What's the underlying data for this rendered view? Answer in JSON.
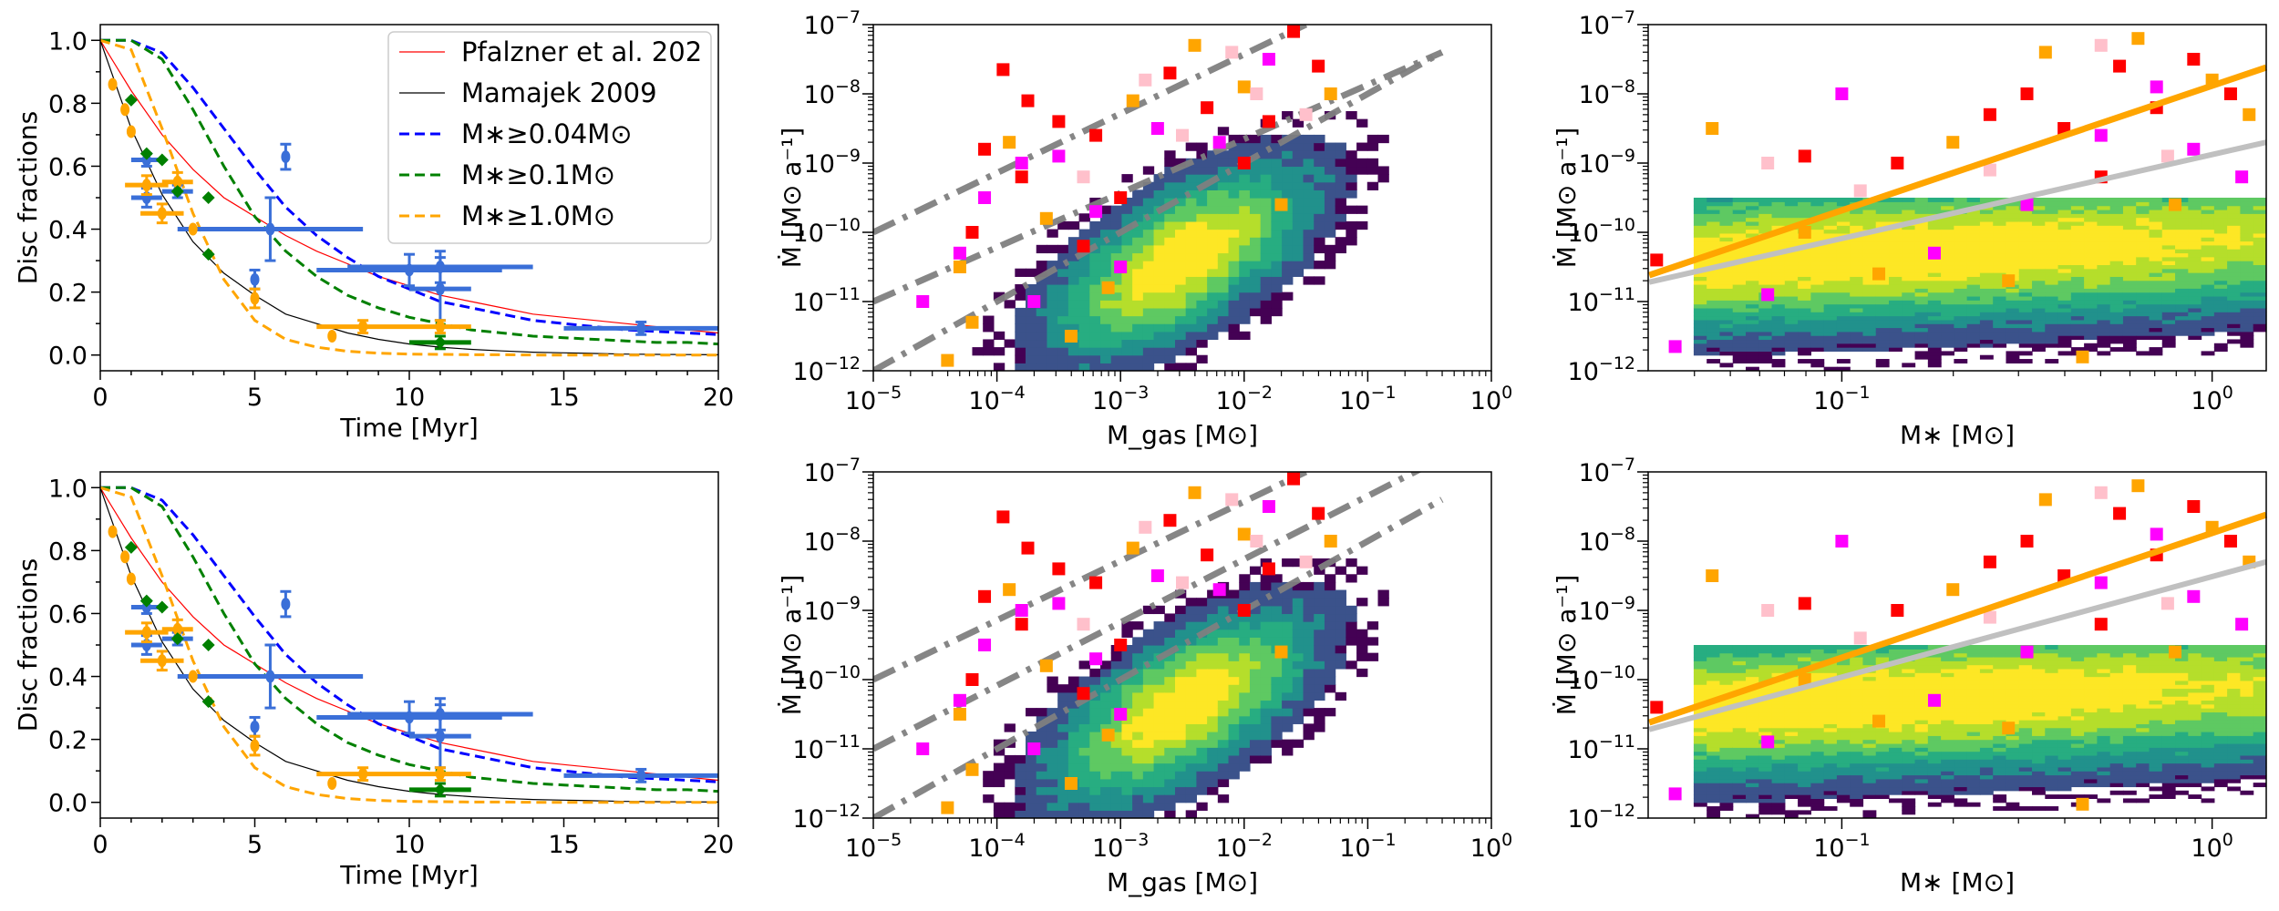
{
  "chart_data": [
    {
      "type": "line",
      "title": "",
      "xlabel": "Time [Myr]",
      "ylabel": "Disc fractions",
      "xlim": [
        0,
        20
      ],
      "ylim": [
        -0.05,
        1.05
      ],
      "xticks": [
        "0",
        "5",
        "10",
        "15",
        "20"
      ],
      "yticks": [
        "0.0",
        "0.2",
        "0.4",
        "0.6",
        "0.8",
        "1.0"
      ],
      "legend_position": "top-right",
      "legend": [
        "Pfalzner et al. 202",
        "Mamajek 2009",
        "M∗≥0.04M⊙",
        "M∗≥0.1M⊙",
        "M∗≥1.0M⊙"
      ],
      "colors": {
        "pfalzner": "#ff0000",
        "mamajek": "#000000",
        "m004": "#0000ff",
        "m01": "#008000",
        "m10": "#ffa500",
        "obs_blue": "#3a6fd8",
        "obs_orange": "#ffa500",
        "obs_green": "#008000"
      },
      "series": [
        {
          "name": "Pfalzner et al. 202",
          "x": [
            0,
            1,
            2,
            3,
            4,
            5,
            6,
            7,
            8,
            9,
            10,
            11,
            12,
            13,
            14,
            15,
            16,
            17,
            18,
            19,
            20
          ],
          "y": [
            1.0,
            0.84,
            0.7,
            0.59,
            0.5,
            0.44,
            0.38,
            0.33,
            0.29,
            0.25,
            0.22,
            0.19,
            0.17,
            0.15,
            0.13,
            0.12,
            0.11,
            0.1,
            0.09,
            0.08,
            0.07
          ]
        },
        {
          "name": "Mamajek 2009",
          "x": [
            0,
            1,
            2,
            3,
            4,
            5,
            6,
            7,
            8,
            9,
            10,
            11,
            12,
            13,
            14,
            15,
            16,
            17,
            18,
            19,
            20
          ],
          "y": [
            1.0,
            0.72,
            0.51,
            0.36,
            0.26,
            0.19,
            0.13,
            0.1,
            0.07,
            0.05,
            0.035,
            0.025,
            0.018,
            0.013,
            0.009,
            0.007,
            0.005,
            0.003,
            0.002,
            0.0015,
            0.001
          ]
        },
        {
          "name": "M∗≥0.04M⊙",
          "x": [
            0,
            1,
            2,
            3,
            4,
            5,
            6,
            7,
            8,
            9,
            10,
            11,
            12,
            13,
            14,
            15,
            16,
            17,
            18,
            19,
            20
          ],
          "y": [
            1.0,
            1.0,
            0.96,
            0.85,
            0.72,
            0.59,
            0.47,
            0.38,
            0.31,
            0.25,
            0.21,
            0.17,
            0.15,
            0.13,
            0.11,
            0.1,
            0.09,
            0.08,
            0.075,
            0.07,
            0.065
          ]
        },
        {
          "name": "M∗≥0.1M⊙",
          "x": [
            0,
            1,
            2,
            3,
            4,
            5,
            6,
            7,
            8,
            9,
            10,
            11,
            12,
            13,
            14,
            15,
            16,
            17,
            18,
            19,
            20
          ],
          "y": [
            1.0,
            1.0,
            0.94,
            0.78,
            0.6,
            0.44,
            0.33,
            0.25,
            0.19,
            0.15,
            0.12,
            0.1,
            0.08,
            0.07,
            0.06,
            0.055,
            0.05,
            0.045,
            0.04,
            0.04,
            0.035
          ]
        },
        {
          "name": "M∗≥1.0M⊙",
          "x": [
            0,
            1,
            2,
            3,
            4,
            5,
            6,
            7,
            8,
            9,
            10,
            11,
            12,
            13,
            14,
            15,
            16,
            17,
            18,
            19,
            20
          ],
          "y": [
            1.0,
            0.97,
            0.72,
            0.45,
            0.24,
            0.11,
            0.05,
            0.025,
            0.012,
            0.006,
            0.003,
            0.002,
            0.001,
            0.001,
            0.0,
            0.0,
            0.0,
            0.0,
            0.0,
            0.0,
            0.0
          ]
        }
      ],
      "observations": [
        {
          "color": "blue",
          "x": 1.5,
          "y": 0.62,
          "xerr": 0.5,
          "yerr": 0.02
        },
        {
          "color": "blue",
          "x": 1.5,
          "y": 0.5,
          "xerr": 0.5,
          "yerr": 0.03
        },
        {
          "color": "blue",
          "x": 2.5,
          "y": 0.52,
          "xerr": 0.5,
          "yerr": 0.02
        },
        {
          "color": "blue",
          "x": 5.0,
          "y": 0.24,
          "xerr": 0.0,
          "yerr": 0.03
        },
        {
          "color": "blue",
          "x": 5.5,
          "y": 0.4,
          "xerr": 3.0,
          "yerr": 0.1
        },
        {
          "color": "blue",
          "x": 6.0,
          "y": 0.63,
          "xerr": 0.0,
          "yerr": 0.04
        },
        {
          "color": "blue",
          "x": 10.0,
          "y": 0.27,
          "xerr": 3.0,
          "yerr": 0.05
        },
        {
          "color": "blue",
          "x": 11.0,
          "y": 0.28,
          "xerr": 3.0,
          "yerr": 0.05
        },
        {
          "color": "blue",
          "x": 11.0,
          "y": 0.21,
          "xerr": 1.0,
          "yerr": 0.1
        },
        {
          "color": "blue",
          "x": 17.5,
          "y": 0.085,
          "xerr": 2.5,
          "yerr": 0.02
        },
        {
          "color": "orange",
          "x": 0.4,
          "y": 0.86,
          "xerr": 0.0,
          "yerr": 0.0
        },
        {
          "color": "orange",
          "x": 0.8,
          "y": 0.78,
          "xerr": 0.0,
          "yerr": 0.0
        },
        {
          "color": "orange",
          "x": 1.0,
          "y": 0.71,
          "xerr": 0.0,
          "yerr": 0.0
        },
        {
          "color": "orange",
          "x": 1.5,
          "y": 0.54,
          "xerr": 0.7,
          "yerr": 0.03
        },
        {
          "color": "orange",
          "x": 2.0,
          "y": 0.45,
          "xerr": 0.7,
          "yerr": 0.03
        },
        {
          "color": "orange",
          "x": 2.5,
          "y": 0.55,
          "xerr": 0.5,
          "yerr": 0.03
        },
        {
          "color": "orange",
          "x": 3.0,
          "y": 0.4,
          "xerr": 0.0,
          "yerr": 0.0
        },
        {
          "color": "orange",
          "x": 5.0,
          "y": 0.18,
          "xerr": 0.0,
          "yerr": 0.03
        },
        {
          "color": "orange",
          "x": 7.5,
          "y": 0.06,
          "xerr": 0.0,
          "yerr": 0.0
        },
        {
          "color": "orange",
          "x": 8.5,
          "y": 0.09,
          "xerr": 1.5,
          "yerr": 0.02
        },
        {
          "color": "orange",
          "x": 11.0,
          "y": 0.09,
          "xerr": 1.0,
          "yerr": 0.02
        },
        {
          "color": "green",
          "x": 1.0,
          "y": 0.81,
          "xerr": 0.0,
          "yerr": 0.0
        },
        {
          "color": "green",
          "x": 1.5,
          "y": 0.64,
          "xerr": 0.0,
          "yerr": 0.0
        },
        {
          "color": "green",
          "x": 2.0,
          "y": 0.62,
          "xerr": 0.0,
          "yerr": 0.0
        },
        {
          "color": "green",
          "x": 2.5,
          "y": 0.52,
          "xerr": 0.0,
          "yerr": 0.0
        },
        {
          "color": "green",
          "x": 3.5,
          "y": 0.5,
          "xerr": 0.0,
          "yerr": 0.0
        },
        {
          "color": "green",
          "x": 3.5,
          "y": 0.32,
          "xerr": 0.0,
          "yerr": 0.0
        },
        {
          "color": "green",
          "x": 11.0,
          "y": 0.04,
          "xerr": 1.0,
          "yerr": 0.02
        }
      ]
    },
    {
      "type": "heatmap",
      "title": "",
      "xlabel": "M_gas [M⊙]",
      "ylabel": "Ṁ [M⊙ a⁻¹]",
      "xscale": "log",
      "yscale": "log",
      "xlim": [
        1e-05,
        1
      ],
      "ylim": [
        1e-12,
        1e-07
      ],
      "xticks": [
        "10⁻⁵",
        "10⁻⁴",
        "10⁻³",
        "10⁻²",
        "10⁻¹",
        "10⁰"
      ],
      "yticks": [
        "10⁻¹²",
        "10⁻¹¹",
        "10⁻¹⁰",
        "10⁻⁹",
        "10⁻⁸",
        "10⁻⁷"
      ],
      "density_peak": {
        "log_mgas": -2.5,
        "log_mdot": -10.4
      },
      "reference_lines": [
        {
          "style": "dash-dot",
          "color": "#808080",
          "log_mgas": [
            -5,
            -1.5
          ],
          "log_mdot": [
            -10.0,
            -7.0
          ]
        },
        {
          "style": "dash-dot",
          "color": "#808080",
          "log_mgas": [
            -5,
            -0.4
          ],
          "log_mdot": [
            -11.0,
            -7.4
          ]
        },
        {
          "style": "dash-dot",
          "color": "#808080",
          "log_mgas": [
            -5,
            -0.4
          ],
          "log_mdot": [
            -12.0,
            -7.4
          ]
        }
      ],
      "scatter_colors": [
        "#ff0000",
        "#ffa500",
        "#ff00ff",
        "#ffc0cb"
      ],
      "scatter_points": [
        {
          "c": 0,
          "x": -3.95,
          "y": -7.65
        },
        {
          "c": 0,
          "x": -3.75,
          "y": -8.1
        },
        {
          "c": 0,
          "x": -3.5,
          "y": -8.4
        },
        {
          "c": 0,
          "x": -3.2,
          "y": -8.6
        },
        {
          "c": 0,
          "x": -4.1,
          "y": -8.8
        },
        {
          "c": 0,
          "x": -2.6,
          "y": -7.7
        },
        {
          "c": 0,
          "x": -2.3,
          "y": -8.2
        },
        {
          "c": 0,
          "x": -1.8,
          "y": -8.4
        },
        {
          "c": 0,
          "x": -1.6,
          "y": -7.1
        },
        {
          "c": 0,
          "x": -1.4,
          "y": -7.6
        },
        {
          "c": 0,
          "x": -3.0,
          "y": -9.5
        },
        {
          "c": 0,
          "x": -3.8,
          "y": -9.2
        },
        {
          "c": 0,
          "x": -2.0,
          "y": -9.0
        },
        {
          "c": 0,
          "x": -4.2,
          "y": -10.0
        },
        {
          "c": 0,
          "x": -3.3,
          "y": -10.2
        },
        {
          "c": 1,
          "x": -4.3,
          "y": -10.5
        },
        {
          "c": 1,
          "x": -4.2,
          "y": -11.3
        },
        {
          "c": 1,
          "x": -3.9,
          "y": -8.7
        },
        {
          "c": 1,
          "x": -3.6,
          "y": -9.8
        },
        {
          "c": 1,
          "x": -3.4,
          "y": -11.5
        },
        {
          "c": 1,
          "x": -2.9,
          "y": -8.1
        },
        {
          "c": 1,
          "x": -2.4,
          "y": -7.3
        },
        {
          "c": 1,
          "x": -2.0,
          "y": -7.9
        },
        {
          "c": 1,
          "x": -1.7,
          "y": -9.6
        },
        {
          "c": 1,
          "x": -1.3,
          "y": -8.0
        },
        {
          "c": 1,
          "x": -4.4,
          "y": -11.85
        },
        {
          "c": 1,
          "x": -3.1,
          "y": -10.8
        },
        {
          "c": 2,
          "x": -4.6,
          "y": -11.0
        },
        {
          "c": 2,
          "x": -4.1,
          "y": -9.5
        },
        {
          "c": 2,
          "x": -3.8,
          "y": -9.0
        },
        {
          "c": 2,
          "x": -3.5,
          "y": -8.9
        },
        {
          "c": 2,
          "x": -3.2,
          "y": -9.7
        },
        {
          "c": 2,
          "x": -2.7,
          "y": -8.5
        },
        {
          "c": 2,
          "x": -2.2,
          "y": -8.7
        },
        {
          "c": 2,
          "x": -1.8,
          "y": -7.5
        },
        {
          "c": 2,
          "x": -4.3,
          "y": -10.3
        },
        {
          "c": 2,
          "x": -3.7,
          "y": -11.0
        },
        {
          "c": 2,
          "x": -3.0,
          "y": -10.5
        },
        {
          "c": 3,
          "x": -2.8,
          "y": -7.8
        },
        {
          "c": 3,
          "x": -2.5,
          "y": -8.6
        },
        {
          "c": 3,
          "x": -2.1,
          "y": -7.4
        },
        {
          "c": 3,
          "x": -1.9,
          "y": -8.0
        },
        {
          "c": 3,
          "x": -1.5,
          "y": -8.3
        },
        {
          "c": 3,
          "x": -3.3,
          "y": -9.2
        }
      ]
    },
    {
      "type": "heatmap",
      "title": "",
      "xlabel": "M∗ [M⊙]",
      "ylabel": "Ṁ [M⊙ a⁻¹]",
      "xscale": "log",
      "yscale": "log",
      "xlim": [
        0.03,
        1.4
      ],
      "ylim": [
        1e-12,
        1e-07
      ],
      "xticks": [
        "10⁻¹",
        "10⁰"
      ],
      "yticks": [
        "10⁻¹²",
        "10⁻¹¹",
        "10⁻¹⁰",
        "10⁻⁹",
        "10⁻⁸",
        "10⁻⁷"
      ],
      "fit_lines": [
        {
          "name": "orange fit",
          "color": "#ffa500",
          "log_mstar": [
            -1.52,
            0.146
          ],
          "log_mdot": [
            -10.62,
            -7.62
          ]
        },
        {
          "name": "silver fit",
          "color": "#c0c0c0",
          "log_mstar_top": [
            -1.52,
            0.146
          ],
          "log_mdot_top": [
            -10.72,
            -8.7
          ],
          "log_mstar_bottom": [
            -1.52,
            0.146
          ],
          "log_mdot_bottom": [
            -10.72,
            -8.3
          ]
        }
      ],
      "scatter_colors": [
        "#ff0000",
        "#ffa500",
        "#ff00ff",
        "#ffc0cb"
      ],
      "scatter_points": [
        {
          "c": 0,
          "x": -1.5,
          "y": -10.4
        },
        {
          "c": 0,
          "x": -1.1,
          "y": -8.9
        },
        {
          "c": 0,
          "x": -0.85,
          "y": -9.0
        },
        {
          "c": 0,
          "x": -0.6,
          "y": -8.3
        },
        {
          "c": 0,
          "x": -0.5,
          "y": -8.0
        },
        {
          "c": 0,
          "x": -0.4,
          "y": -8.5
        },
        {
          "c": 0,
          "x": -0.25,
          "y": -7.6
        },
        {
          "c": 0,
          "x": -0.15,
          "y": -8.2
        },
        {
          "c": 0,
          "x": -0.05,
          "y": -7.5
        },
        {
          "c": 0,
          "x": 0.05,
          "y": -8.0
        },
        {
          "c": 0,
          "x": -0.3,
          "y": -9.2
        },
        {
          "c": 1,
          "x": -1.35,
          "y": -8.5
        },
        {
          "c": 1,
          "x": -1.1,
          "y": -10.0
        },
        {
          "c": 1,
          "x": -0.9,
          "y": -10.6
        },
        {
          "c": 1,
          "x": -0.7,
          "y": -8.7
        },
        {
          "c": 1,
          "x": -0.55,
          "y": -10.7
        },
        {
          "c": 1,
          "x": -0.35,
          "y": -11.8
        },
        {
          "c": 1,
          "x": -0.2,
          "y": -7.2
        },
        {
          "c": 1,
          "x": -0.1,
          "y": -9.6
        },
        {
          "c": 1,
          "x": 0.0,
          "y": -7.8
        },
        {
          "c": 1,
          "x": 0.1,
          "y": -8.3
        },
        {
          "c": 1,
          "x": -0.45,
          "y": -7.4
        },
        {
          "c": 2,
          "x": -1.45,
          "y": -11.65
        },
        {
          "c": 2,
          "x": -1.2,
          "y": -10.9
        },
        {
          "c": 2,
          "x": -1.0,
          "y": -8.0
        },
        {
          "c": 2,
          "x": -0.75,
          "y": -10.3
        },
        {
          "c": 2,
          "x": -0.5,
          "y": -9.6
        },
        {
          "c": 2,
          "x": -0.3,
          "y": -8.6
        },
        {
          "c": 2,
          "x": -0.15,
          "y": -7.9
        },
        {
          "c": 2,
          "x": -0.05,
          "y": -8.8
        },
        {
          "c": 2,
          "x": 0.08,
          "y": -9.2
        },
        {
          "c": 3,
          "x": -1.2,
          "y": -9.0
        },
        {
          "c": 3,
          "x": -0.95,
          "y": -9.4
        },
        {
          "c": 3,
          "x": -0.6,
          "y": -9.1
        },
        {
          "c": 3,
          "x": -0.3,
          "y": -7.3
        },
        {
          "c": 3,
          "x": -0.12,
          "y": -8.9
        }
      ]
    }
  ]
}
